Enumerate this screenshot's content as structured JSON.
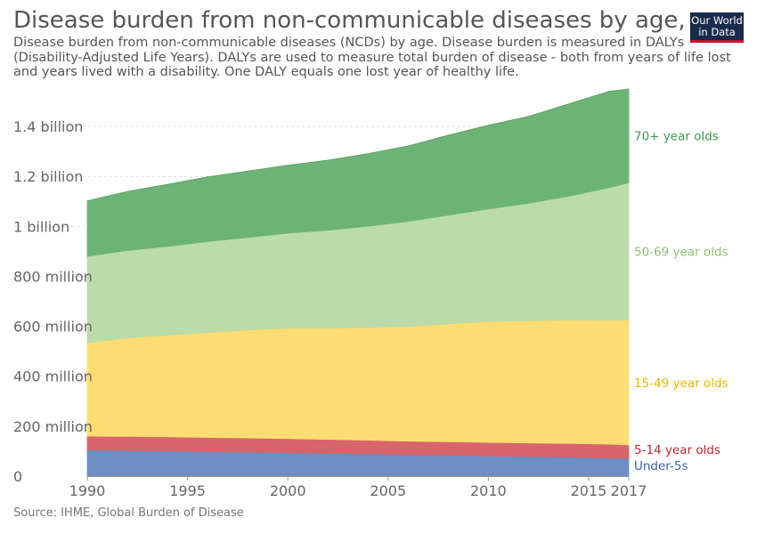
{
  "header": {
    "title": "Disease burden from non-communicable diseases by age, World",
    "subtitle": "Disease burden from non-communicable diseases (NCDs) by age. Disease burden is measured in DALYs (Disability-Adjusted Life Years). DALYs are used to measure total burden of disease - both from years of life lost and years lived with a disability. One DALY equals one lost year of healthy life."
  },
  "logo": {
    "line1": "Our World",
    "line2": "in Data"
  },
  "footer": {
    "source": "Source: IHME, Global Burden of Disease"
  },
  "chart_data": {
    "type": "area",
    "stacked": true,
    "x": [
      1990,
      1992,
      1994,
      1996,
      1998,
      2000,
      2002,
      2004,
      2006,
      2008,
      2010,
      2012,
      2014,
      2016,
      2017
    ],
    "xlim": [
      1990,
      2017
    ],
    "ylim": [
      0,
      1550000000
    ],
    "x_ticks": [
      1990,
      1995,
      2000,
      2005,
      2010,
      2015,
      2017
    ],
    "y_ticks": [
      {
        "value": 0,
        "label": "0"
      },
      {
        "value": 200000000,
        "label": "200 million"
      },
      {
        "value": 400000000,
        "label": "400 million"
      },
      {
        "value": 600000000,
        "label": "600 million"
      },
      {
        "value": 800000000,
        "label": "800 million"
      },
      {
        "value": 1000000000,
        "label": "1 billion"
      },
      {
        "value": 1200000000,
        "label": "1.2 billion"
      },
      {
        "value": 1400000000,
        "label": "1.4 billion"
      }
    ],
    "grid": "horizontal",
    "legend": "right-end labels",
    "series": [
      {
        "name": "Under-5s",
        "color": "#6d8fc4",
        "label_color": "#3a62a8",
        "values": [
          105000000,
          103000000,
          100000000,
          98000000,
          96000000,
          94000000,
          91000000,
          89000000,
          86000000,
          84000000,
          81000000,
          79000000,
          77000000,
          73000000,
          71000000
        ]
      },
      {
        "name": "5-14 year olds",
        "color": "#d9656c",
        "label_color": "#c0282c",
        "values": [
          55000000,
          56000000,
          57000000,
          57000000,
          57000000,
          56000000,
          56000000,
          55000000,
          54000000,
          54000000,
          54000000,
          54000000,
          54000000,
          55000000,
          54000000
        ]
      },
      {
        "name": "15-49 year olds",
        "color": "#fddd73",
        "label_color": "#e6b800",
        "values": [
          375000000,
          395000000,
          408000000,
          420000000,
          433000000,
          443000000,
          446000000,
          452000000,
          460000000,
          472000000,
          485000000,
          490000000,
          495000000,
          497000000,
          500000000
        ]
      },
      {
        "name": "50-69 year olds",
        "color": "#bbdbab",
        "label_color": "#8bc16f",
        "values": [
          345000000,
          350000000,
          355000000,
          365000000,
          370000000,
          380000000,
          392000000,
          405000000,
          420000000,
          435000000,
          450000000,
          470000000,
          495000000,
          530000000,
          550000000
        ]
      },
      {
        "name": "70+ year olds",
        "color": "#6cb475",
        "label_color": "#3c9a4a",
        "values": [
          222000000,
          236000000,
          248000000,
          258000000,
          265000000,
          272000000,
          280000000,
          290000000,
          302000000,
          320000000,
          335000000,
          347000000,
          369000000,
          385000000,
          375000000
        ]
      }
    ]
  }
}
